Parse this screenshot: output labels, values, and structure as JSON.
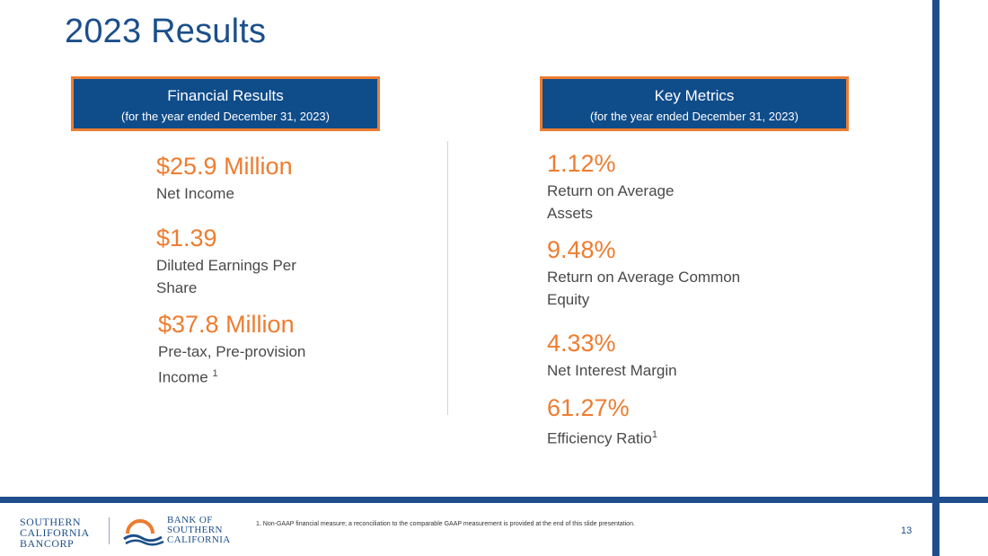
{
  "slide": {
    "title": "2023 Results",
    "page_number": "13",
    "footnote": "1.    Non-GAAP financial measure; a reconciliation to the comparable GAAP measurement is provided at the end of this slide presentation."
  },
  "financial_results": {
    "header": "Financial Results",
    "subheader": "(for the year ended December 31, 2023)",
    "metrics": [
      {
        "value": "$25.9 Million",
        "label_line1": "Net Income",
        "label_line2": "",
        "footnote_mark": ""
      },
      {
        "value": "$1.39",
        "label_line1": "Diluted Earnings Per",
        "label_line2": "Share",
        "footnote_mark": ""
      },
      {
        "value": "$37.8 Million",
        "label_line1": "Pre-tax, Pre-provision",
        "label_line2": "Income ",
        "footnote_mark": "1"
      }
    ]
  },
  "key_metrics": {
    "header": "Key Metrics",
    "subheader": "(for the year ended December 31, 2023)",
    "metrics": [
      {
        "value": "1.12%",
        "label_line1": "Return on Average",
        "label_line2": "Assets",
        "footnote_mark": ""
      },
      {
        "value": "9.48%",
        "label_line1": "Return on Average Common",
        "label_line2": "Equity",
        "footnote_mark": ""
      },
      {
        "value": "4.33%",
        "label_line1": "Net Interest Margin",
        "label_line2": "",
        "footnote_mark": ""
      },
      {
        "value": "61.27%",
        "label_line1": "Efficiency Ratio",
        "label_line2": "",
        "footnote_mark": "1"
      }
    ]
  },
  "logos": {
    "company": [
      "SOUTHERN",
      "CALIFORNIA",
      "BANCORP"
    ],
    "bank": [
      "BANK OF",
      "SOUTHERN",
      "CALIFORNIA"
    ]
  },
  "colors": {
    "brand_blue": "#1b4f8a",
    "header_fill": "#0f4c8a",
    "accent_orange": "#ed7d31",
    "label_gray": "#4a4a4a"
  }
}
